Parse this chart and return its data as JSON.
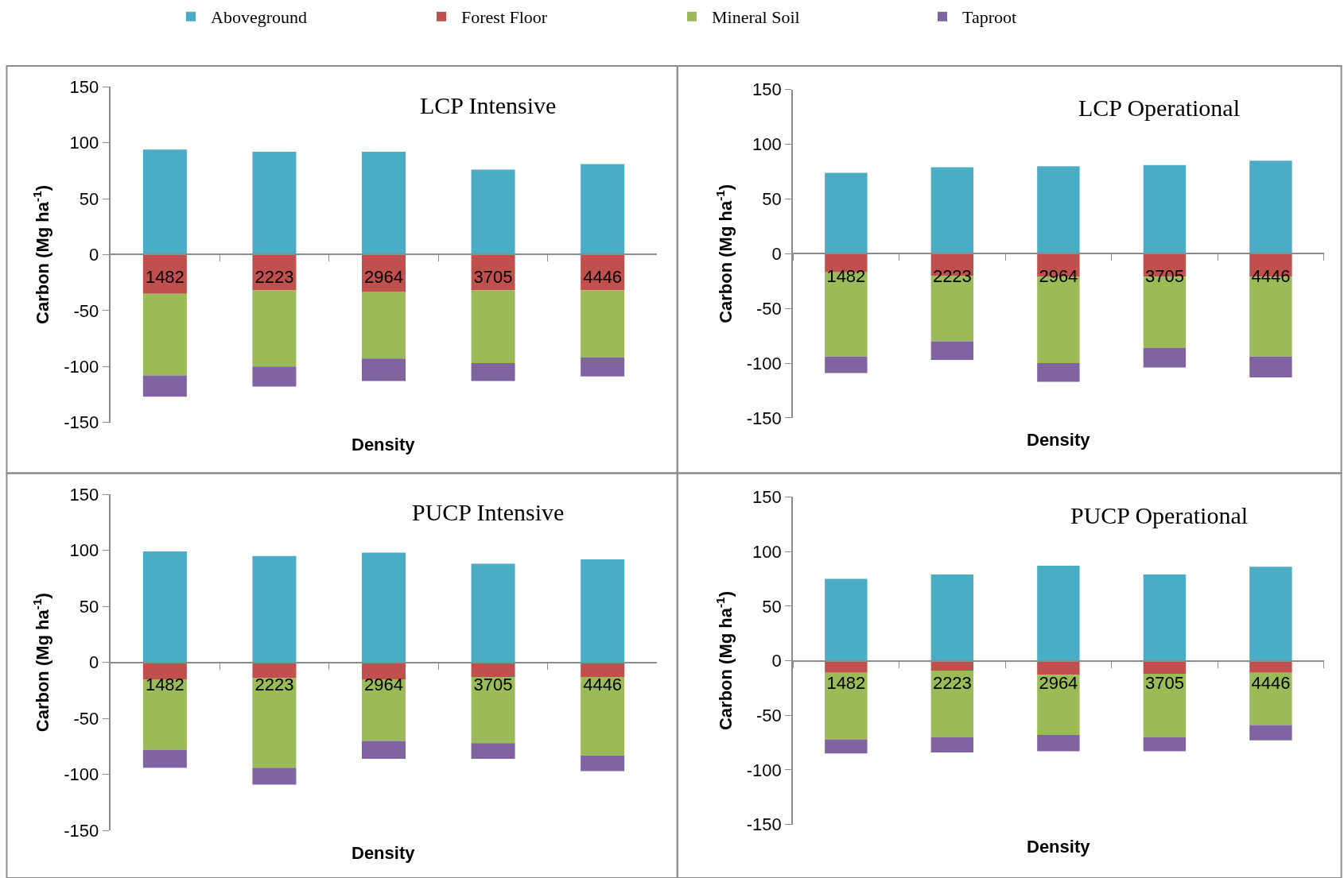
{
  "chart_data": [
    {
      "type": "bar",
      "title": "LCP Intensive",
      "xlabel": "Density",
      "ylabel": "Carbon (Mg ha$^{-1}$)",
      "categories": [
        "1482",
        "2223",
        "2964",
        "3705",
        "4446"
      ],
      "stacked": true,
      "legend": "top",
      "ylim": [
        -150,
        150
      ],
      "yticks": [
        -150,
        -100,
        -50,
        0,
        50,
        100,
        150
      ],
      "series": [
        {
          "name": "Aboveground",
          "color": "#4bacc6",
          "values": [
            94,
            92,
            92,
            76,
            81
          ]
        },
        {
          "name": "Forest Floor",
          "color": "#c0504d",
          "values": [
            -35,
            -32,
            -33,
            -32,
            -32
          ]
        },
        {
          "name": "Mineral Soil",
          "color": "#9bbb59",
          "values": [
            -73,
            -68,
            -60,
            -65,
            -60
          ]
        },
        {
          "name": "Taproot",
          "color": "#8064a2",
          "values": [
            -19,
            -18,
            -20,
            -16,
            -17
          ]
        }
      ]
    },
    {
      "type": "bar",
      "title": "LCP Operational",
      "xlabel": "Density",
      "ylabel": "Carbon (Mg ha$^{-1}$)",
      "categories": [
        "1482",
        "2223",
        "2964",
        "3705",
        "4446"
      ],
      "stacked": true,
      "ylim": [
        -150,
        150
      ],
      "yticks": [
        -150,
        -100,
        -50,
        0,
        50,
        100,
        150
      ],
      "series": [
        {
          "color": "#4bacc6",
          "values": [
            74,
            79,
            80,
            81,
            85
          ]
        },
        {
          "color": "#c0504d",
          "values": [
            -17,
            -20,
            -21,
            -21,
            -21
          ]
        },
        {
          "color": "#9bbb59",
          "values": [
            -77,
            -60,
            -79,
            -65,
            -73
          ]
        },
        {
          "color": "#8064a2",
          "values": [
            -15,
            -17,
            -17,
            -18,
            -19
          ]
        }
      ]
    },
    {
      "type": "bar",
      "title": "PUCP Intensive",
      "xlabel": "Density",
      "ylabel": "Carbon (Mg ha$^{-1}$)",
      "categories": [
        "1482",
        "2223",
        "2964",
        "3705",
        "4446"
      ],
      "stacked": true,
      "ylim": [
        -150,
        150
      ],
      "yticks": [
        -150,
        -100,
        -50,
        0,
        50,
        100,
        150
      ],
      "series": [
        {
          "color": "#4bacc6",
          "values": [
            99,
            95,
            98,
            88,
            92
          ]
        },
        {
          "color": "#c0504d",
          "values": [
            -15,
            -14,
            -15,
            -13,
            -13
          ]
        },
        {
          "color": "#9bbb59",
          "values": [
            -63,
            -80,
            -55,
            -59,
            -70
          ]
        },
        {
          "color": "#8064a2",
          "values": [
            -16,
            -15,
            -16,
            -14,
            -14
          ]
        }
      ]
    },
    {
      "type": "bar",
      "title": "PUCP Operational",
      "xlabel": "Density",
      "ylabel": "Carbon (Mg ha$^{-1}$)",
      "categories": [
        "1482",
        "2223",
        "2964",
        "3705",
        "4446"
      ],
      "stacked": true,
      "ylim": [
        -150,
        150
      ],
      "yticks": [
        -150,
        -100,
        -50,
        0,
        50,
        100,
        150
      ],
      "series": [
        {
          "color": "#4bacc6",
          "values": [
            75,
            79,
            87,
            79,
            86
          ]
        },
        {
          "color": "#c0504d",
          "values": [
            -11,
            -9,
            -13,
            -12,
            -11
          ]
        },
        {
          "color": "#9bbb59",
          "values": [
            -61,
            -61,
            -55,
            -58,
            -48
          ]
        },
        {
          "color": "#8064a2",
          "values": [
            -13,
            -14,
            -15,
            -13,
            -14
          ]
        }
      ]
    }
  ]
}
